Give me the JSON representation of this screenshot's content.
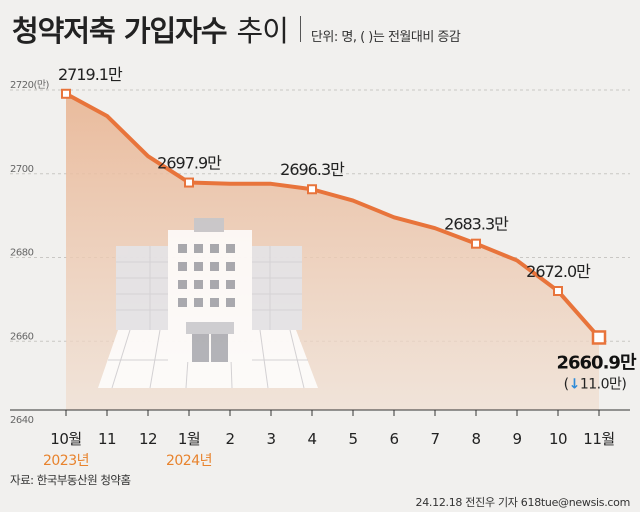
{
  "header": {
    "title_bold": "청약저축 가입자수",
    "title_light": "추이",
    "unit_note": "단위: 명, ( )는 전월대비 증감"
  },
  "chart_data": {
    "type": "area",
    "title": "청약저축 가입자수 추이",
    "categories": [
      "10월",
      "11",
      "12",
      "1월",
      "2",
      "3",
      "4",
      "5",
      "6",
      "7",
      "8",
      "9",
      "10",
      "11월"
    ],
    "year_labels": [
      {
        "index": 0,
        "label": "2023년"
      },
      {
        "index": 3,
        "label": "2024년"
      }
    ],
    "values": [
      2719.1,
      2713.8,
      2704.2,
      2697.9,
      2697.6,
      2697.6,
      2696.3,
      2693.6,
      2689.6,
      2687.0,
      2683.3,
      2679.3,
      2672.0,
      2660.9
    ],
    "ylim": [
      2640,
      2720
    ],
    "yticks": [
      {
        "value": 2720,
        "label": "2720(만)"
      },
      {
        "value": 2700,
        "label": "2700"
      },
      {
        "value": 2680,
        "label": "2680"
      },
      {
        "value": 2660,
        "label": "2660"
      },
      {
        "value": 2640,
        "label": "2640"
      }
    ],
    "point_labels": [
      {
        "index": 0,
        "label": "2719.1만"
      },
      {
        "index": 3,
        "label": "2697.9만"
      },
      {
        "index": 6,
        "label": "2696.3만"
      },
      {
        "index": 10,
        "label": "2683.3만"
      },
      {
        "index": 12,
        "label": "2672.0만"
      }
    ],
    "final_label": "2660.9만",
    "change_label": "11.0만",
    "change_arrow": "↓",
    "colors": {
      "line": "#e8743b",
      "area_top": "#e9b593",
      "area_bottom": "#f0ded0",
      "arrow": "#2f8bd8",
      "year": "#e8832d",
      "grid": "#c9c7c4"
    }
  },
  "footer": {
    "source": "자료: 한국부동산원 청약홈",
    "credit": "24.12.18 전진우 기자 618tue@newsis.com"
  }
}
